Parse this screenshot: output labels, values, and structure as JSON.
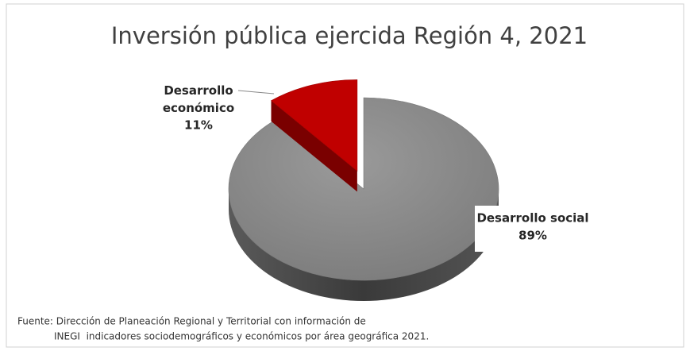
{
  "chart_data": {
    "type": "pie",
    "title": "Inversión pública ejercida Región 4, 2021",
    "categories": [
      "Desarrollo social",
      "Desarrollo económico"
    ],
    "values": [
      89,
      11
    ],
    "value_labels": [
      "89%",
      "11%"
    ],
    "colors": [
      "#8c8c8c",
      "#c00000"
    ],
    "source": [
      "Fuente: Dirección de Planeación Regional y Territorial con información de",
      "INEGI  indicadores sociodemográficos y económicos por área geográfica 2021."
    ]
  }
}
